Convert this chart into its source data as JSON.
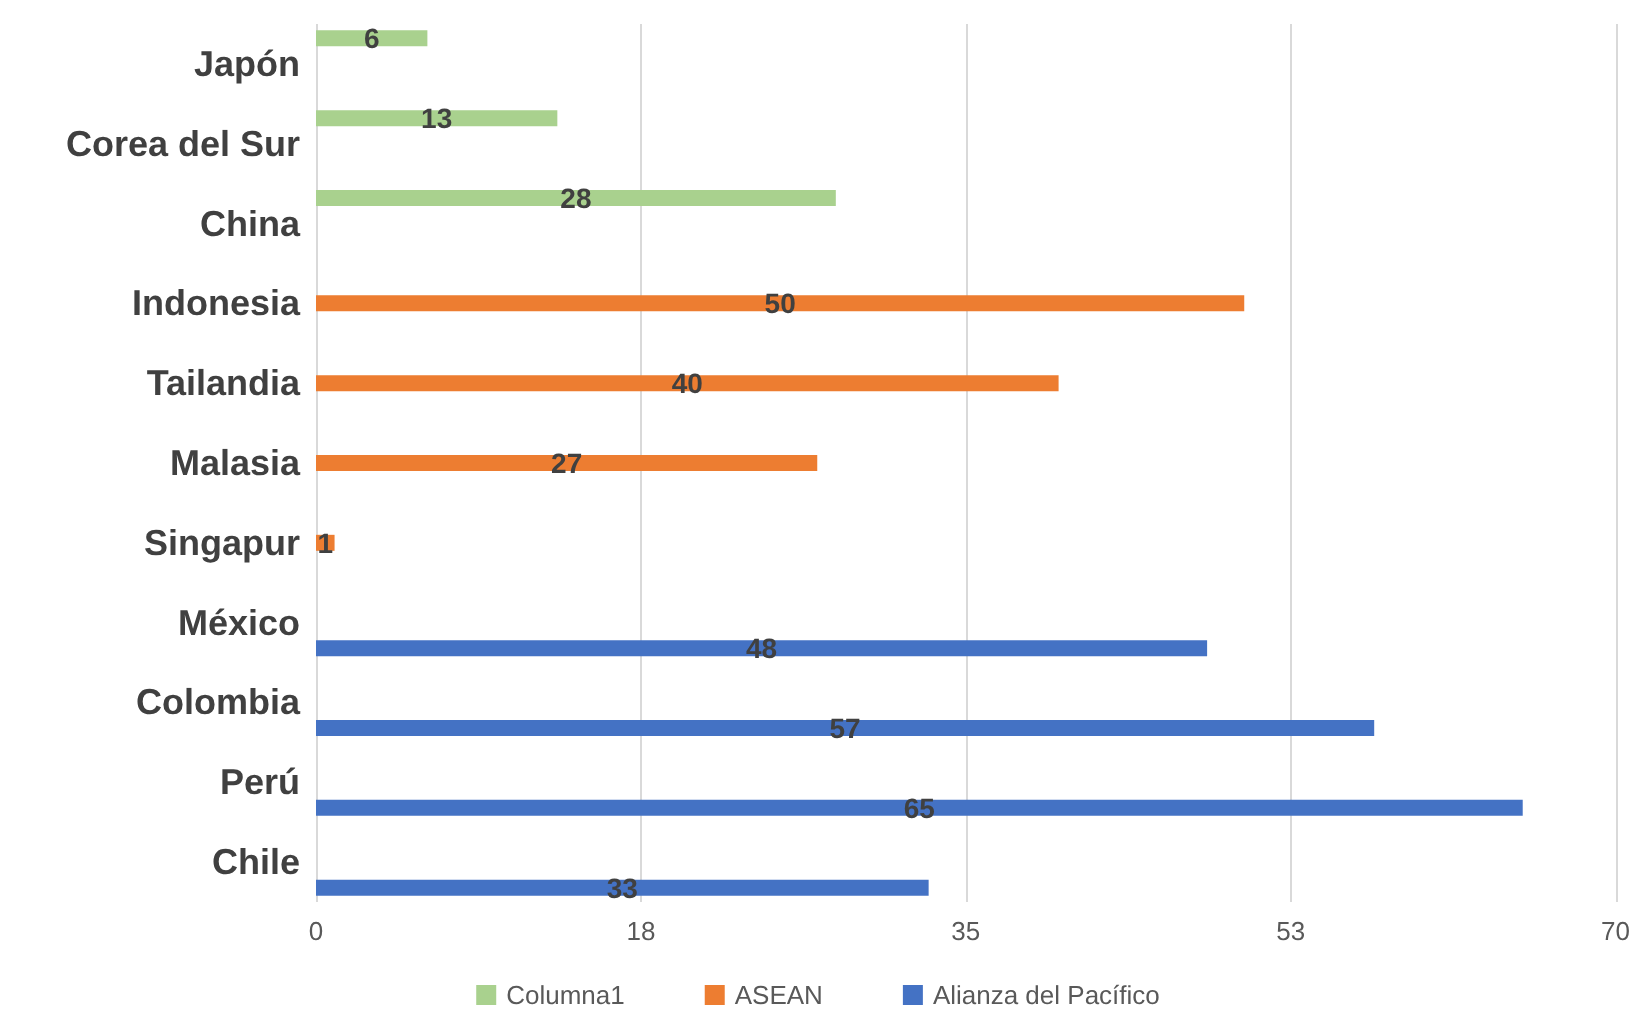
{
  "chart_data": {
    "type": "bar",
    "orientation": "horizontal",
    "categories": [
      "Japón",
      "Corea del Sur",
      "China",
      "Indonesia",
      "Tailandia",
      "Malasia",
      "Singapur",
      "México",
      "Colombia",
      "Perú",
      "Chile"
    ],
    "series": [
      {
        "name": "Columna1",
        "color": "#a9d18e",
        "values": [
          6,
          13,
          28,
          null,
          null,
          null,
          null,
          null,
          null,
          null,
          null
        ]
      },
      {
        "name": "ASEAN",
        "color": "#ed7d31",
        "values": [
          null,
          null,
          null,
          50,
          40,
          27,
          1,
          null,
          null,
          null,
          null
        ]
      },
      {
        "name": "Alianza del Pacífico",
        "color": "#4472c4",
        "values": [
          null,
          null,
          null,
          null,
          null,
          null,
          null,
          48,
          57,
          65,
          33
        ]
      }
    ],
    "xlim": [
      0,
      70
    ],
    "xticks": [
      0,
      {
        "value": 17.5,
        "label": "18"
      },
      35,
      {
        "value": 52.5,
        "label": "53"
      },
      70
    ],
    "data_labels": true,
    "grid": "x",
    "legend": "bottom"
  }
}
